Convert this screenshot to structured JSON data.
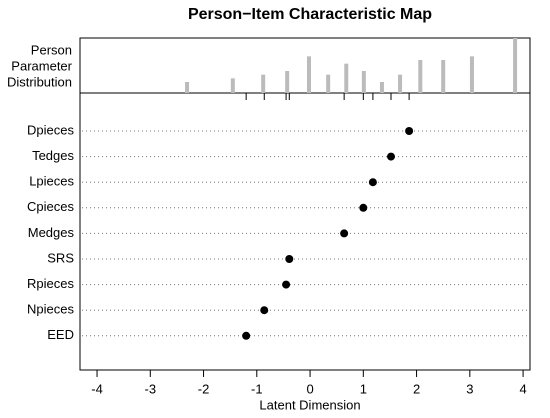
{
  "chart_data": {
    "type": "dot",
    "title": "Person−Item Characteristic Map",
    "xlabel": "Latent Dimension",
    "categories": [
      "Dpieces",
      "Tedges",
      "Lpieces",
      "Cpieces",
      "Medges",
      "SRS",
      "Rpieces",
      "Npieces",
      "EED"
    ],
    "values": [
      1.86,
      1.52,
      1.18,
      1.0,
      0.64,
      -0.39,
      -0.45,
      -0.86,
      -1.2
    ],
    "color": "#000000",
    "xlim": [
      -4.32,
      4.13
    ],
    "xticks": [
      -4,
      -3,
      -2,
      -1,
      0,
      1,
      2,
      3,
      4
    ],
    "grid": true,
    "person_distribution": {
      "label": [
        "Person",
        "Parameter",
        "Distribution"
      ],
      "x": [
        -2.31,
        -1.45,
        -0.88,
        -0.43,
        -0.02,
        0.34,
        0.68,
        1.01,
        1.35,
        1.69,
        2.07,
        2.5,
        3.04,
        3.85
      ],
      "counts": [
        3,
        4,
        5,
        6,
        10,
        5,
        8,
        6,
        3,
        5,
        9,
        9,
        10,
        15
      ],
      "ylim": [
        0,
        15
      ],
      "color": "#bbbbbb"
    }
  }
}
